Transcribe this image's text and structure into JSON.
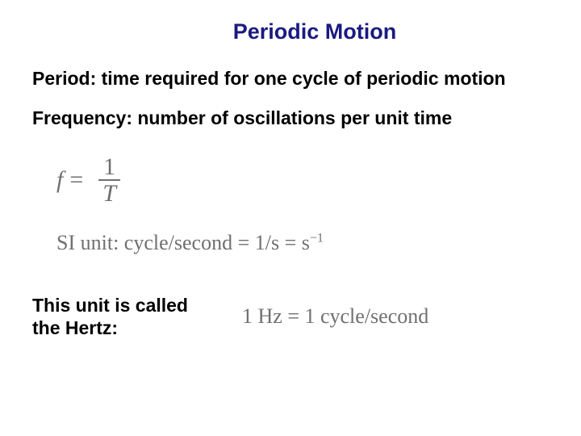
{
  "title": "Periodic Motion",
  "definitions": {
    "period": "Period: time required for one cycle of periodic motion",
    "frequency": "Frequency: number of oscillations per unit time"
  },
  "formula": {
    "lhs": "f",
    "eq": "=",
    "frac_top": "1",
    "frac_bot": "T"
  },
  "si": {
    "label": "SI unit: ",
    "text": "cycle/second = 1/s = s",
    "exp": "−1"
  },
  "hertz": {
    "label": "This unit is called the Hertz:",
    "eq": "1 Hz = 1 cycle/second"
  },
  "colors": {
    "title_color": "#1a1a80",
    "body_text": "#000000",
    "formula_text": "#707070",
    "background": "#ffffff"
  },
  "typography": {
    "title_fontsize": 27,
    "body_fontsize": 23,
    "formula_fontsize": 30,
    "si_fontsize": 26
  }
}
